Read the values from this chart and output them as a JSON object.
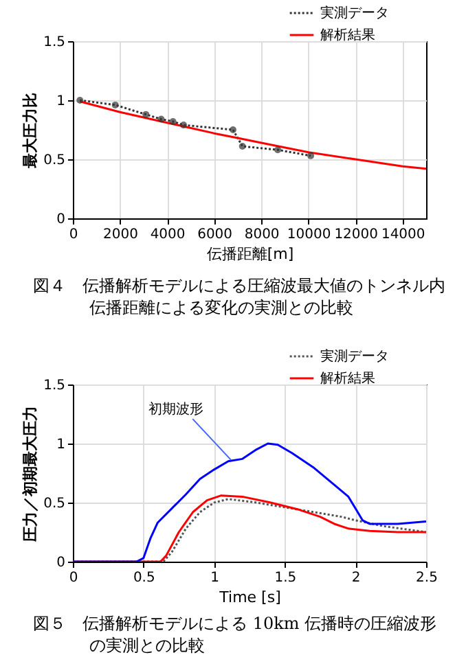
{
  "chart_data": [
    {
      "type": "line",
      "xlabel": "伝播距離[m]",
      "ylabel": "最大圧力比",
      "xlim": [
        0,
        15000
      ],
      "xticks": [
        0,
        2000,
        4000,
        6000,
        8000,
        10000,
        12000,
        14000
      ],
      "ylim": [
        0,
        1.5
      ],
      "yticks": [
        0,
        0.5,
        1,
        1.5
      ],
      "grid": true,
      "legend": "top right",
      "annotations": [
        "図４　伝播解析モデルによる圧縮波最大値のトンネル内伝播距離による変化の実測との比較"
      ],
      "series": [
        {
          "name": "実測データ",
          "color": "#333333",
          "marker": "circle",
          "line_style": "dotted",
          "x": [
            300,
            1800,
            3100,
            3750,
            4250,
            4700,
            6800,
            7200,
            8700,
            10100
          ],
          "values": [
            1.0,
            0.96,
            0.88,
            0.84,
            0.82,
            0.79,
            0.75,
            0.61,
            0.58,
            0.53
          ]
        },
        {
          "name": "解析結果",
          "color": "#ff0000",
          "line_style": "solid",
          "x": [
            300,
            2000,
            4000,
            6000,
            7000,
            8000,
            10000,
            12000,
            14000,
            15000
          ],
          "values": [
            0.99,
            0.9,
            0.81,
            0.72,
            0.68,
            0.64,
            0.56,
            0.5,
            0.44,
            0.42
          ]
        }
      ]
    },
    {
      "type": "line",
      "xlabel": "Time [s]",
      "ylabel": "圧力／初期最大圧力",
      "xlim": [
        0,
        2.5
      ],
      "xticks": [
        0,
        0.5,
        1,
        1.5,
        2,
        2.5
      ],
      "ylim": [
        0,
        1.5
      ],
      "yticks": [
        0,
        0.5,
        1,
        1.5
      ],
      "grid": true,
      "legend": "top right",
      "annotations": [
        {
          "text": "初期波形",
          "x": 1.12,
          "y": 0.86
        },
        "図５　伝播解析モデルによる 10km 伝播時の圧縮波形の実測との比較"
      ],
      "series": [
        {
          "name": "実測データ",
          "color": "#555555",
          "line_style": "dotted",
          "x": [
            0,
            0.64,
            0.7,
            0.8,
            0.9,
            1.0,
            1.1,
            1.3,
            1.5,
            1.7,
            1.9,
            2.0,
            2.2,
            2.5
          ],
          "values": [
            0,
            0,
            0.08,
            0.28,
            0.42,
            0.5,
            0.53,
            0.5,
            0.46,
            0.42,
            0.38,
            0.35,
            0.3,
            0.25
          ]
        },
        {
          "name": "解析結果",
          "color": "#ff0000",
          "line_style": "solid",
          "x": [
            0,
            0.62,
            0.66,
            0.75,
            0.85,
            0.95,
            1.05,
            1.2,
            1.4,
            1.6,
            1.75,
            1.85,
            1.95,
            2.1,
            2.3,
            2.5
          ],
          "values": [
            0,
            0,
            0.05,
            0.25,
            0.42,
            0.52,
            0.56,
            0.55,
            0.5,
            0.44,
            0.38,
            0.32,
            0.28,
            0.26,
            0.25,
            0.25
          ]
        },
        {
          "color": "#0000ff",
          "line_style": "solid",
          "x": [
            0,
            0.45,
            0.5,
            0.55,
            0.6,
            0.7,
            0.8,
            0.9,
            1.0,
            1.1,
            1.2,
            1.3,
            1.38,
            1.45,
            1.55,
            1.7,
            1.85,
            1.95,
            2.0,
            2.05,
            2.1,
            2.3,
            2.5
          ],
          "values": [
            0,
            0,
            0.03,
            0.2,
            0.33,
            0.45,
            0.57,
            0.7,
            0.78,
            0.85,
            0.87,
            0.95,
            1.0,
            0.99,
            0.92,
            0.8,
            0.65,
            0.55,
            0.45,
            0.35,
            0.32,
            0.32,
            0.34
          ]
        }
      ]
    }
  ]
}
